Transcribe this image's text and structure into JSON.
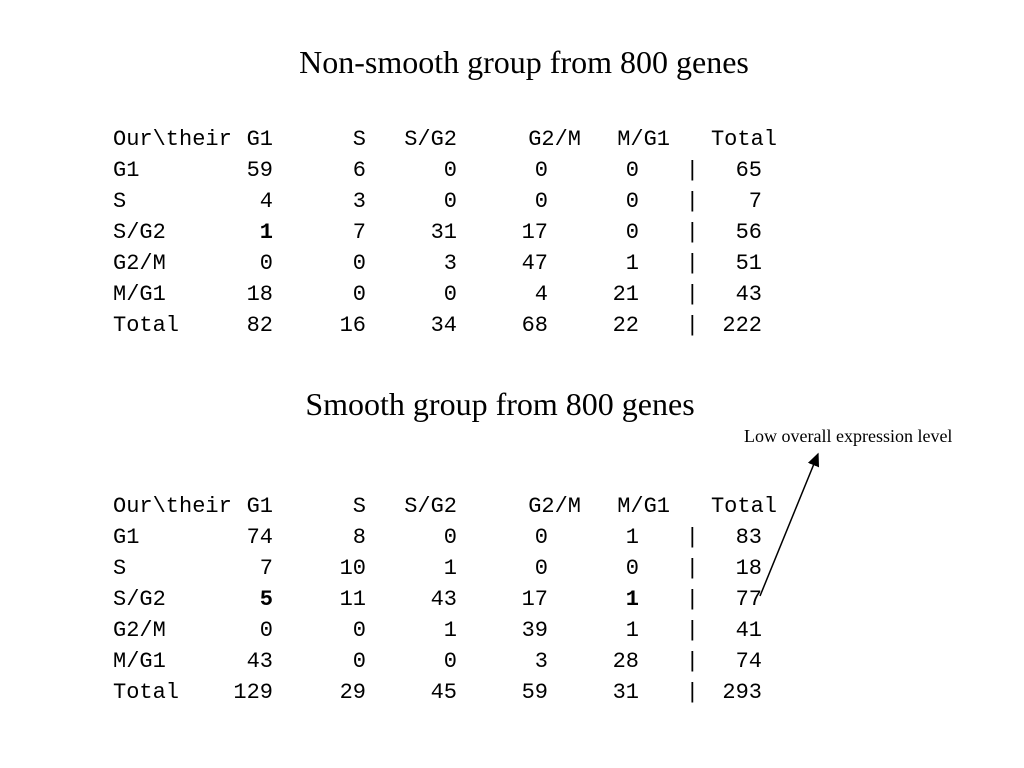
{
  "table1": {
    "title": "Non-smooth group from 800 genes",
    "header": [
      "Our\\their",
      "G1",
      "S",
      "S/G2",
      "G2/M",
      "M/G1",
      "Total"
    ],
    "rows": [
      {
        "label": "G1",
        "g1": "59",
        "s": "6",
        "sg2": "0",
        "g2m": "0",
        "mg1": "0",
        "sep": "|",
        "total": "65"
      },
      {
        "label": "S",
        "g1": "4",
        "s": "3",
        "sg2": "0",
        "g2m": "0",
        "mg1": "0",
        "sep": "|",
        "total": "7"
      },
      {
        "label": "S/G2",
        "g1": "1",
        "s": "7",
        "sg2": "31",
        "g2m": "17",
        "mg1": "0",
        "sep": "|",
        "total": "56"
      },
      {
        "label": "G2/M",
        "g1": "0",
        "s": "0",
        "sg2": "3",
        "g2m": "47",
        "mg1": "1",
        "sep": "|",
        "total": "51"
      },
      {
        "label": "M/G1",
        "g1": "18",
        "s": "0",
        "sg2": "0",
        "g2m": "4",
        "mg1": "21",
        "sep": "|",
        "total": "43"
      },
      {
        "label": "Total",
        "g1": "82",
        "s": "16",
        "sg2": "34",
        "g2m": "68",
        "mg1": "22",
        "sep": "|",
        "total": "222"
      }
    ],
    "bold_cells": [
      "2.g1"
    ]
  },
  "table2": {
    "title": "Smooth group from 800 genes",
    "header": [
      "Our\\their",
      "G1",
      "S",
      "S/G2",
      "G2/M",
      "M/G1",
      "Total"
    ],
    "rows": [
      {
        "label": "G1",
        "g1": "74",
        "s": "8",
        "sg2": "0",
        "g2m": "0",
        "mg1": "1",
        "sep": "|",
        "total": "83"
      },
      {
        "label": "S",
        "g1": "7",
        "s": "10",
        "sg2": "1",
        "g2m": "0",
        "mg1": "0",
        "sep": "|",
        "total": "18"
      },
      {
        "label": "S/G2",
        "g1": "5",
        "s": "11",
        "sg2": "43",
        "g2m": "17",
        "mg1": "1",
        "sep": "|",
        "total": "77"
      },
      {
        "label": "G2/M",
        "g1": "0",
        "s": "0",
        "sg2": "1",
        "g2m": "39",
        "mg1": "1",
        "sep": "|",
        "total": "41"
      },
      {
        "label": "M/G1",
        "g1": "43",
        "s": "0",
        "sg2": "0",
        "g2m": "3",
        "mg1": "28",
        "sep": "|",
        "total": "74"
      },
      {
        "label": "Total",
        "g1": "129",
        "s": "29",
        "sg2": "45",
        "g2m": "59",
        "mg1": "31",
        "sep": "|",
        "total": "293"
      }
    ],
    "bold_cells": [
      "2.g1",
      "2.mg1"
    ]
  },
  "annotation": {
    "text": "Low overall expression level"
  }
}
